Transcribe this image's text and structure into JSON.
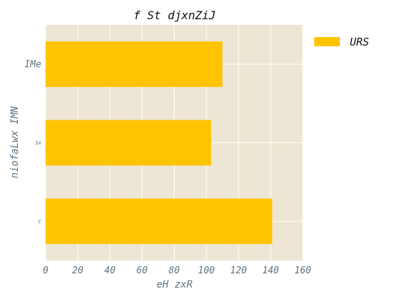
{
  "chart_data": {
    "type": "bar",
    "orientation": "horizontal",
    "title": "f St djxnZiJ",
    "xlabel": "eH zxR",
    "ylabel": "niofaLwx IMN",
    "categories": [
      "IMe",
      "Sx",
      "C"
    ],
    "series": [
      {
        "name": "URS",
        "values": [
          110,
          103,
          141
        ],
        "color": "#ffc400"
      }
    ],
    "xlim": [
      0,
      160
    ],
    "xticks": [
      0,
      20,
      40,
      60,
      80,
      100,
      120,
      140,
      160
    ],
    "grid": true,
    "legend_position": "top-right",
    "colors": {
      "plot_background": "#ede6d4",
      "grid": "#ffffff",
      "tick_text": "#5f7381"
    }
  }
}
